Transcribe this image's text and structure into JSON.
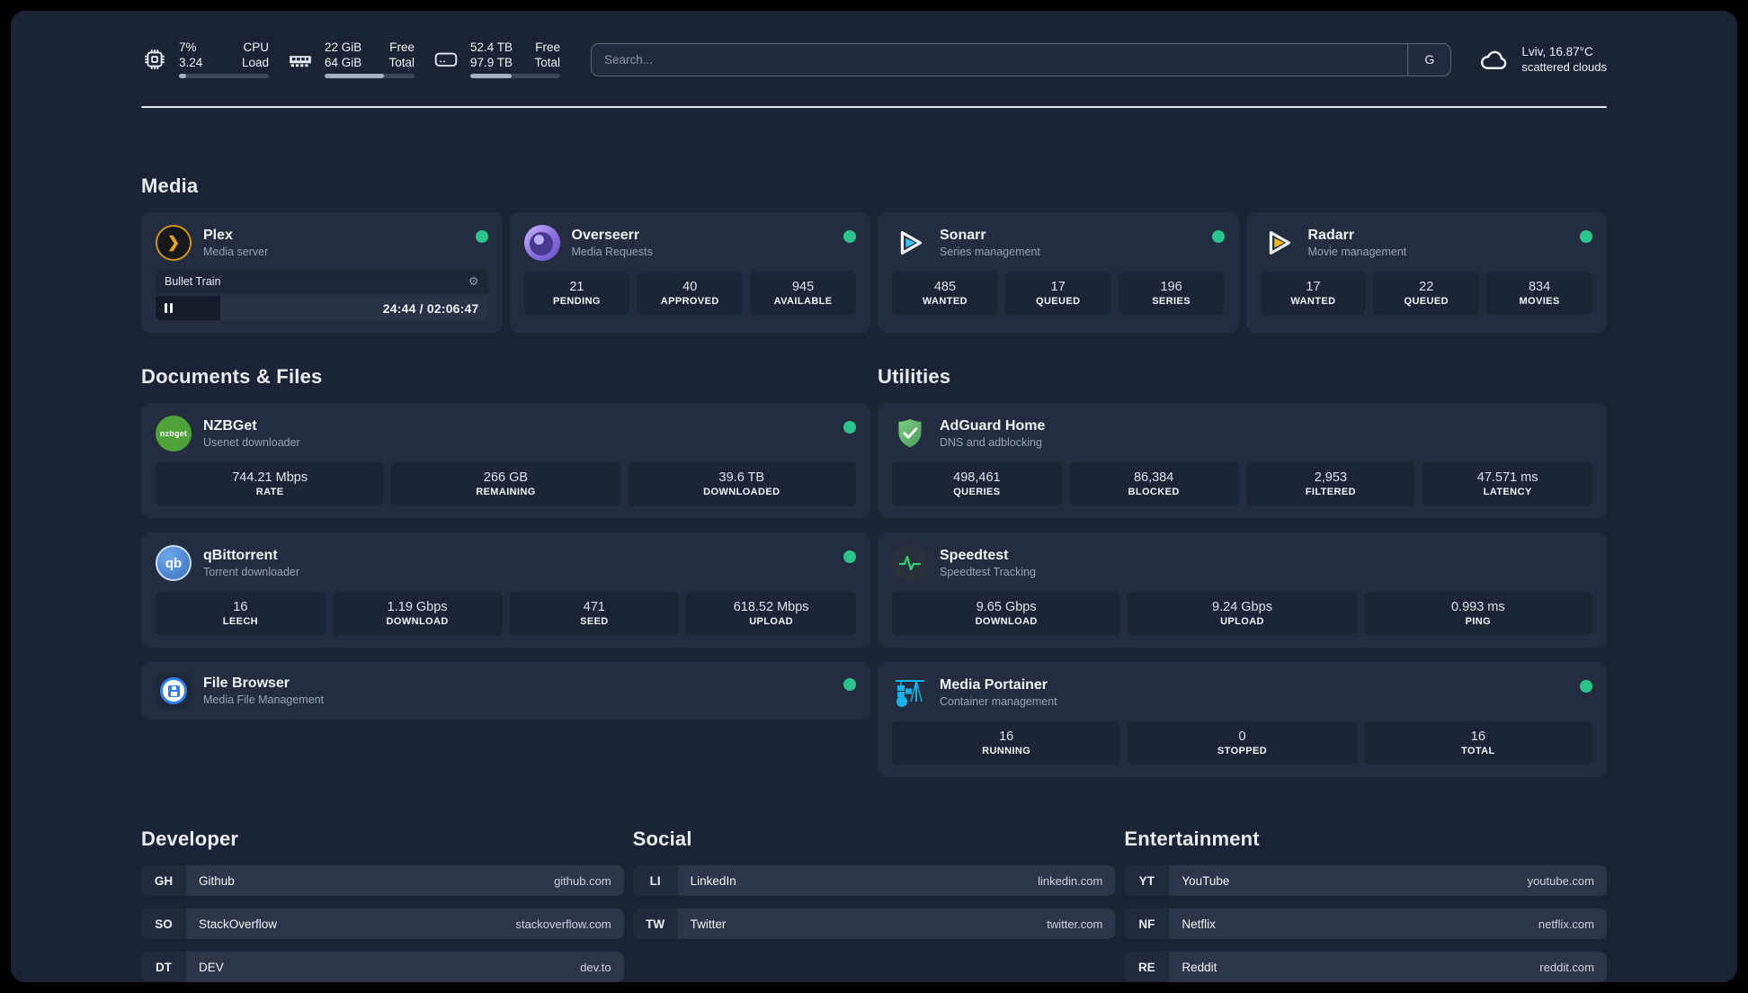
{
  "colors": {
    "background": "#1b2434",
    "card": "#242d3f",
    "tile": "#1c2536",
    "status_online": "#2bc48a",
    "accent_plex": "#eba70e",
    "accent_sonarr": "#35c5f4",
    "accent_radarr": "#f7b90c",
    "accent_nzbget": "#4fa13a",
    "accent_qbittorrent": "#3a6fc2",
    "accent_filebrowser": "#2d7ff0",
    "accent_adguard": "#67b279",
    "accent_speedtest": "#2dd673",
    "accent_portainer": "#13b5ea"
  },
  "header": {
    "stats": [
      {
        "icon": "cpu",
        "values": [
          "7%",
          "3.24"
        ],
        "labels": [
          "CPU",
          "Load"
        ],
        "progress_pct": 8
      },
      {
        "icon": "ram",
        "values": [
          "22 GiB",
          "64 GiB"
        ],
        "labels": [
          "Free",
          "Total"
        ],
        "progress_pct": 66
      },
      {
        "icon": "disk",
        "values": [
          "52.4 TB",
          "97.9 TB"
        ],
        "labels": [
          "Free",
          "Total"
        ],
        "progress_pct": 46
      }
    ],
    "search": {
      "placeholder": "Search...",
      "engine_button": "G"
    },
    "weather": {
      "location": "Lviv, 16.87°C",
      "condition": "scattered clouds"
    }
  },
  "sections": {
    "media": {
      "title": "Media"
    },
    "documents": {
      "title": "Documents & Files"
    },
    "utilities": {
      "title": "Utilities"
    }
  },
  "apps": {
    "plex": {
      "name": "Plex",
      "desc": "Media server",
      "now_playing": {
        "title": "Bullet Train",
        "time": "24:44 / 02:06:47",
        "progress_pct": 19.5
      }
    },
    "overseerr": {
      "name": "Overseerr",
      "desc": "Media Requests",
      "stats": [
        {
          "value": "21",
          "label": "PENDING"
        },
        {
          "value": "40",
          "label": "APPROVED"
        },
        {
          "value": "945",
          "label": "AVAILABLE"
        }
      ]
    },
    "sonarr": {
      "name": "Sonarr",
      "desc": "Series management",
      "stats": [
        {
          "value": "485",
          "label": "WANTED"
        },
        {
          "value": "17",
          "label": "QUEUED"
        },
        {
          "value": "196",
          "label": "SERIES"
        }
      ]
    },
    "radarr": {
      "name": "Radarr",
      "desc": "Movie management",
      "stats": [
        {
          "value": "17",
          "label": "WANTED"
        },
        {
          "value": "22",
          "label": "QUEUED"
        },
        {
          "value": "834",
          "label": "MOVIES"
        }
      ]
    },
    "nzbget": {
      "name": "NZBGet",
      "desc": "Usenet downloader",
      "icon_text": "nzbget",
      "stats": [
        {
          "value": "744.21 Mbps",
          "label": "RATE"
        },
        {
          "value": "266 GB",
          "label": "REMAINING"
        },
        {
          "value": "39.6 TB",
          "label": "DOWNLOADED"
        }
      ]
    },
    "qbittorrent": {
      "name": "qBittorrent",
      "desc": "Torrent downloader",
      "icon_text": "qb",
      "stats": [
        {
          "value": "16",
          "label": "LEECH"
        },
        {
          "value": "1.19 Gbps",
          "label": "DOWNLOAD"
        },
        {
          "value": "471",
          "label": "SEED"
        },
        {
          "value": "618.52 Mbps",
          "label": "UPLOAD"
        }
      ]
    },
    "filebrowser": {
      "name": "File Browser",
      "desc": "Media File Management"
    },
    "adguard": {
      "name": "AdGuard Home",
      "desc": "DNS and adblocking",
      "stats": [
        {
          "value": "498,461",
          "label": "QUERIES"
        },
        {
          "value": "86,384",
          "label": "BLOCKED"
        },
        {
          "value": "2,953",
          "label": "FILTERED"
        },
        {
          "value": "47.571 ms",
          "label": "LATENCY"
        }
      ]
    },
    "speedtest": {
      "name": "Speedtest",
      "desc": "Speedtest Tracking",
      "stats": [
        {
          "value": "9.65 Gbps",
          "label": "DOWNLOAD"
        },
        {
          "value": "9.24 Gbps",
          "label": "UPLOAD"
        },
        {
          "value": "0.993 ms",
          "label": "PING"
        }
      ]
    },
    "portainer": {
      "name": "Media Portainer",
      "desc": "Container management",
      "stats": [
        {
          "value": "16",
          "label": "RUNNING"
        },
        {
          "value": "0",
          "label": "STOPPED"
        },
        {
          "value": "16",
          "label": "TOTAL"
        }
      ]
    }
  },
  "links": {
    "developer": {
      "title": "Developer",
      "items": [
        {
          "tag": "GH",
          "name": "Github",
          "url": "github.com"
        },
        {
          "tag": "SO",
          "name": "StackOverflow",
          "url": "stackoverflow.com"
        },
        {
          "tag": "DT",
          "name": "DEV",
          "url": "dev.to"
        }
      ]
    },
    "social": {
      "title": "Social",
      "items": [
        {
          "tag": "LI",
          "name": "LinkedIn",
          "url": "linkedin.com"
        },
        {
          "tag": "TW",
          "name": "Twitter",
          "url": "twitter.com"
        }
      ]
    },
    "entertainment": {
      "title": "Entertainment",
      "items": [
        {
          "tag": "YT",
          "name": "YouTube",
          "url": "youtube.com"
        },
        {
          "tag": "NF",
          "name": "Netflix",
          "url": "netflix.com"
        },
        {
          "tag": "RE",
          "name": "Reddit",
          "url": "reddit.com"
        }
      ]
    }
  }
}
